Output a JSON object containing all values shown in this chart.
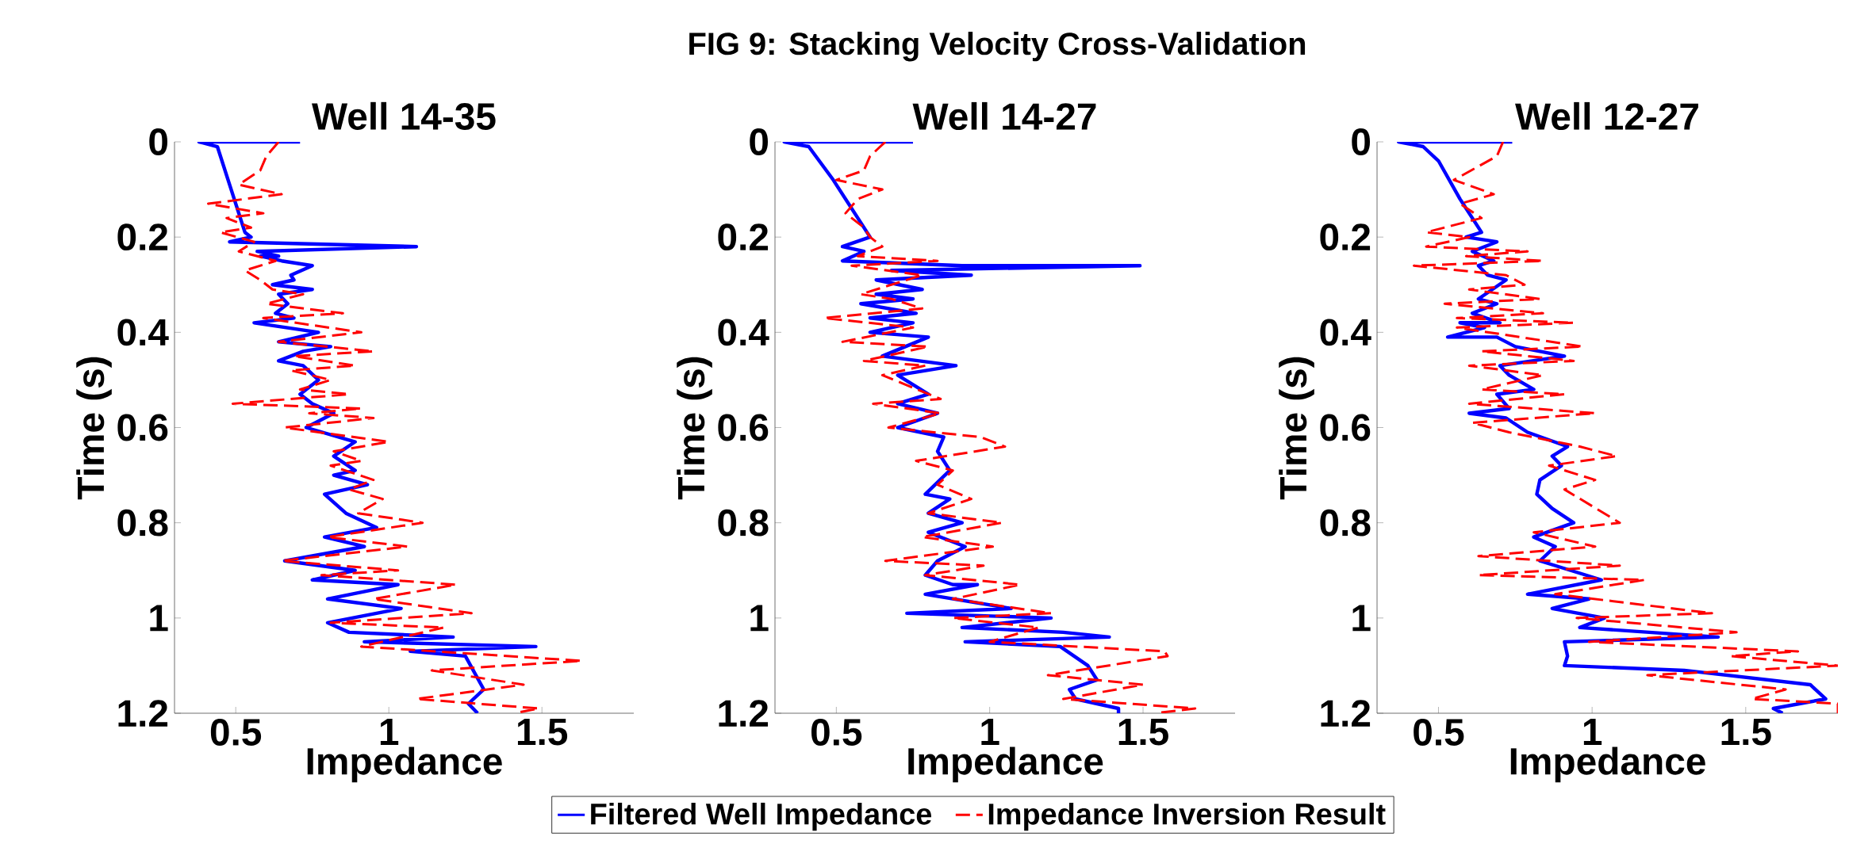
{
  "chart_data": [
    {
      "type": "line",
      "title": "Well 14-35",
      "xlabel": "Impedance",
      "ylabel": "Time (s)",
      "xlim": [
        0.3,
        1.8
      ],
      "ylim": [
        1.2,
        0
      ],
      "xticks": [
        0.5,
        1,
        1.5
      ],
      "yticks": [
        0,
        0.2,
        0.4,
        0.6,
        0.8,
        1,
        1.2
      ],
      "grid": false,
      "legend": false,
      "series": [
        {
          "color": "#0000ff",
          "line_style": "solid",
          "x": [
            0.71,
            0.38,
            0.44,
            0.48,
            0.53,
            0.55,
            0.48,
            1.09,
            0.57,
            0.64,
            0.58,
            0.65,
            0.75,
            0.68,
            0.69,
            0.62,
            0.75,
            0.64,
            0.67,
            0.63,
            0.69,
            0.56,
            0.77,
            0.64,
            0.81,
            0.72,
            0.64,
            0.72,
            0.77,
            0.71,
            0.75,
            0.82,
            0.73,
            0.89,
            0.82,
            0.89,
            0.82,
            0.93,
            0.79,
            0.86,
            0.96,
            0.79,
            0.92,
            0.66,
            0.89,
            0.75,
            1.03,
            0.8,
            1.04,
            0.8,
            0.87,
            1.21,
            0.92,
            1.48,
            1.07,
            1.25,
            1.31,
            1.26,
            1.29
          ],
          "values": [
            0,
            0.0,
            0.01,
            0.09,
            0.19,
            0.2,
            0.21,
            0.22,
            0.23,
            0.24,
            0.24,
            0.25,
            0.26,
            0.28,
            0.29,
            0.3,
            0.31,
            0.32,
            0.34,
            0.36,
            0.37,
            0.38,
            0.4,
            0.42,
            0.43,
            0.44,
            0.46,
            0.47,
            0.5,
            0.53,
            0.55,
            0.57,
            0.6,
            0.63,
            0.66,
            0.69,
            0.7,
            0.72,
            0.74,
            0.78,
            0.81,
            0.83,
            0.85,
            0.88,
            0.9,
            0.92,
            0.93,
            0.96,
            0.98,
            1.01,
            1.03,
            1.04,
            1.05,
            1.06,
            1.07,
            1.08,
            1.15,
            1.18,
            1.2
          ]
        },
        {
          "color": "#ff0000",
          "line_style": "dashed",
          "x": [
            0.64,
            0.6,
            0.58,
            0.51,
            0.65,
            0.41,
            0.59,
            0.47,
            0.55,
            0.45,
            0.56,
            0.51,
            0.63,
            0.53,
            0.58,
            0.62,
            0.72,
            0.6,
            0.85,
            0.59,
            0.91,
            0.64,
            0.95,
            0.69,
            0.89,
            0.68,
            0.81,
            0.71,
            0.87,
            0.49,
            0.91,
            0.74,
            0.95,
            0.66,
            1.0,
            0.82,
            0.91,
            0.81,
            0.95,
            0.87,
            0.98,
            0.9,
            1.11,
            0.8,
            1.06,
            0.65,
            1.03,
            0.78,
            1.22,
            0.95,
            1.27,
            0.81,
            1.18,
            0.91,
            1.63,
            1.14,
            1.44,
            1.09,
            1.49,
            1.41
          ],
          "values": [
            0,
            0.03,
            0.06,
            0.09,
            0.11,
            0.13,
            0.15,
            0.16,
            0.18,
            0.19,
            0.21,
            0.23,
            0.25,
            0.27,
            0.29,
            0.31,
            0.32,
            0.34,
            0.36,
            0.37,
            0.4,
            0.42,
            0.44,
            0.45,
            0.47,
            0.48,
            0.5,
            0.52,
            0.53,
            0.55,
            0.56,
            0.57,
            0.58,
            0.6,
            0.63,
            0.65,
            0.67,
            0.68,
            0.71,
            0.73,
            0.75,
            0.78,
            0.8,
            0.83,
            0.85,
            0.88,
            0.9,
            0.91,
            0.93,
            0.96,
            0.99,
            1.01,
            1.02,
            1.06,
            1.09,
            1.11,
            1.14,
            1.17,
            1.19,
            1.2
          ]
        }
      ]
    },
    {
      "type": "line",
      "title": "Well 14-27",
      "xlabel": "Impedance",
      "ylabel": "Time (s)",
      "xlim": [
        0.3,
        1.8
      ],
      "ylim": [
        1.2,
        0
      ],
      "xticks": [
        0.5,
        1,
        1.5
      ],
      "yticks": [
        0,
        0.2,
        0.4,
        0.6,
        0.8,
        1,
        1.2
      ],
      "grid": false,
      "legend": "bottom",
      "annotations": [
        "FIG 9: Stacking Velocity Cross-Validation"
      ],
      "series": [
        {
          "name": "Filtered Well Impedance",
          "color": "#0000ff",
          "line_style": "solid",
          "x": [
            0.75,
            0.33,
            0.41,
            0.49,
            0.61,
            0.52,
            0.59,
            0.52,
            0.91,
            1.49,
            0.68,
            0.94,
            0.63,
            0.78,
            0.63,
            0.75,
            0.58,
            0.76,
            0.61,
            0.75,
            0.61,
            0.8,
            0.65,
            0.89,
            0.7,
            0.75,
            0.8,
            0.7,
            0.83,
            0.7,
            0.85,
            0.83,
            0.87,
            0.79,
            0.87,
            0.8,
            0.91,
            0.8,
            0.92,
            0.83,
            0.79,
            0.88,
            0.96,
            0.79,
            1.07,
            0.73,
            1.2,
            0.91,
            1.24,
            1.39,
            0.92,
            1.23,
            1.32,
            1.35,
            1.26,
            1.28,
            1.42,
            1.42
          ],
          "values": [
            0,
            0.0,
            0.01,
            0.08,
            0.2,
            0.22,
            0.23,
            0.25,
            0.26,
            0.26,
            0.27,
            0.28,
            0.29,
            0.31,
            0.32,
            0.33,
            0.34,
            0.36,
            0.37,
            0.38,
            0.4,
            0.41,
            0.45,
            0.47,
            0.49,
            0.51,
            0.53,
            0.55,
            0.57,
            0.6,
            0.62,
            0.65,
            0.69,
            0.74,
            0.75,
            0.78,
            0.8,
            0.82,
            0.85,
            0.88,
            0.91,
            0.93,
            0.93,
            0.95,
            0.98,
            0.99,
            1.0,
            1.02,
            1.03,
            1.04,
            1.05,
            1.06,
            1.1,
            1.13,
            1.15,
            1.17,
            1.19,
            1.2
          ]
        },
        {
          "name": "Impedance Inversion Result",
          "color": "#ff0000",
          "line_style": "dashed",
          "x": [
            0.66,
            0.61,
            0.59,
            0.5,
            0.65,
            0.57,
            0.53,
            0.59,
            0.61,
            0.65,
            0.57,
            0.83,
            0.55,
            0.78,
            0.58,
            0.68,
            0.78,
            0.46,
            0.75,
            0.52,
            0.8,
            0.59,
            0.79,
            0.65,
            0.84,
            0.62,
            0.84,
            0.67,
            0.97,
            1.05,
            0.76,
            0.88,
            0.83,
            0.94,
            0.8,
            1.04,
            0.78,
            1.01,
            0.66,
            0.98,
            0.79,
            1.1,
            0.88,
            1.2,
            0.88,
            1.16,
            1.0,
            1.57,
            1.58,
            1.19,
            1.5,
            1.24,
            1.67,
            1.54
          ],
          "values": [
            0,
            0.03,
            0.06,
            0.08,
            0.1,
            0.12,
            0.15,
            0.18,
            0.2,
            0.22,
            0.24,
            0.25,
            0.26,
            0.28,
            0.32,
            0.33,
            0.35,
            0.37,
            0.39,
            0.42,
            0.43,
            0.46,
            0.47,
            0.49,
            0.54,
            0.55,
            0.57,
            0.6,
            0.62,
            0.64,
            0.67,
            0.69,
            0.72,
            0.75,
            0.78,
            0.8,
            0.83,
            0.85,
            0.88,
            0.89,
            0.91,
            0.93,
            0.96,
            0.99,
            1.0,
            1.02,
            1.05,
            1.07,
            1.08,
            1.12,
            1.14,
            1.17,
            1.19,
            1.2
          ]
        }
      ]
    },
    {
      "type": "line",
      "title": "Well 12-27",
      "xlabel": "Impedance",
      "ylabel": "Time (s)",
      "xlim": [
        0.3,
        1.8
      ],
      "ylim": [
        1.2,
        0
      ],
      "xticks": [
        0.5,
        1,
        1.5
      ],
      "yticks": [
        0,
        0.2,
        0.4,
        0.6,
        0.8,
        1,
        1.2
      ],
      "grid": false,
      "legend": false,
      "series": [
        {
          "color": "#0000ff",
          "line_style": "solid",
          "x": [
            0.74,
            0.37,
            0.45,
            0.5,
            0.57,
            0.64,
            0.59,
            0.69,
            0.61,
            0.68,
            0.63,
            0.66,
            0.72,
            0.63,
            0.69,
            0.61,
            0.7,
            0.57,
            0.65,
            0.53,
            0.69,
            0.75,
            0.91,
            0.7,
            0.73,
            0.81,
            0.69,
            0.73,
            0.6,
            0.72,
            0.79,
            0.92,
            0.87,
            0.9,
            0.83,
            0.82,
            0.87,
            0.94,
            0.81,
            0.88,
            0.83,
            1.03,
            0.79,
            0.99,
            0.87,
            1.04,
            0.96,
            1.41,
            0.91,
            0.92,
            0.91,
            1.3,
            1.71,
            1.76,
            1.59,
            1.62
          ],
          "values": [
            0,
            0.0,
            0.01,
            0.04,
            0.12,
            0.19,
            0.2,
            0.21,
            0.23,
            0.25,
            0.26,
            0.28,
            0.29,
            0.33,
            0.34,
            0.36,
            0.38,
            0.38,
            0.39,
            0.41,
            0.41,
            0.43,
            0.45,
            0.47,
            0.49,
            0.52,
            0.53,
            0.56,
            0.57,
            0.58,
            0.61,
            0.64,
            0.66,
            0.68,
            0.71,
            0.74,
            0.77,
            0.8,
            0.83,
            0.85,
            0.88,
            0.92,
            0.95,
            0.96,
            0.98,
            1.0,
            1.02,
            1.04,
            1.05,
            1.08,
            1.1,
            1.11,
            1.14,
            1.17,
            1.19,
            1.2
          ]
        },
        {
          "color": "#ff0000",
          "line_style": "dashed",
          "x": [
            0.71,
            0.69,
            0.55,
            0.68,
            0.57,
            0.64,
            0.46,
            0.6,
            0.46,
            0.79,
            0.59,
            0.84,
            0.42,
            0.72,
            0.78,
            0.6,
            0.83,
            0.52,
            0.84,
            0.56,
            0.94,
            0.56,
            0.97,
            0.64,
            0.94,
            0.6,
            0.84,
            0.64,
            0.91,
            0.6,
            1.01,
            0.61,
            0.73,
            0.96,
            1.08,
            0.86,
            1.01,
            0.91,
            1.09,
            0.81,
            1.01,
            0.63,
            1.09,
            0.63,
            1.17,
            0.88,
            1.39,
            0.95,
            1.47,
            0.99,
            1.67,
            1.45,
            1.8,
            1.18,
            1.63,
            1.52,
            1.8,
            1.8
          ],
          "values": [
            0,
            0.03,
            0.08,
            0.11,
            0.13,
            0.16,
            0.19,
            0.2,
            0.22,
            0.23,
            0.24,
            0.25,
            0.26,
            0.28,
            0.3,
            0.31,
            0.33,
            0.34,
            0.36,
            0.37,
            0.38,
            0.39,
            0.43,
            0.44,
            0.46,
            0.47,
            0.49,
            0.52,
            0.53,
            0.55,
            0.57,
            0.59,
            0.61,
            0.64,
            0.66,
            0.68,
            0.71,
            0.73,
            0.8,
            0.82,
            0.85,
            0.87,
            0.89,
            0.91,
            0.92,
            0.95,
            0.99,
            1.0,
            1.03,
            1.05,
            1.07,
            1.08,
            1.1,
            1.12,
            1.15,
            1.17,
            1.18,
            1.2
          ]
        }
      ]
    }
  ]
}
